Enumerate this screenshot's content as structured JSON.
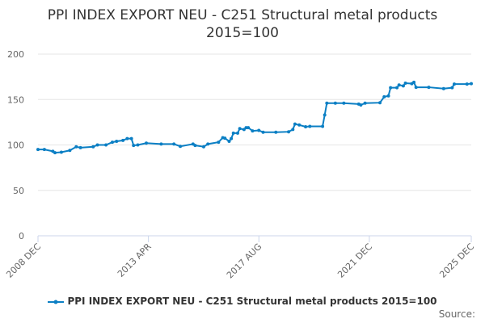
{
  "chart_data": {
    "type": "line",
    "title": "PPI INDEX EXPORT NEU - C251 Structural metal products",
    "subtitle": "2015=100",
    "xlabel": "",
    "ylabel": "",
    "ylim": [
      0,
      200
    ],
    "yticks": [
      0,
      50,
      100,
      150,
      200
    ],
    "xlim": [
      "2008-12",
      "2025-12"
    ],
    "xticks": [
      {
        "date": "2008-12",
        "label": "2008 DEC"
      },
      {
        "date": "2013-04",
        "label": "2013 APR"
      },
      {
        "date": "2017-08",
        "label": "2017 AUG"
      },
      {
        "date": "2021-12",
        "label": "2021 DEC"
      },
      {
        "date": "2025-12",
        "label": "2025 DEC"
      }
    ],
    "grid": true,
    "legend_position": "bottom",
    "color": "#0b7fc4",
    "series": [
      {
        "name": "PPI INDEX EXPORT NEU - C251 Structural metal products 2015=100",
        "points": [
          [
            "2008-12",
            95
          ],
          [
            "2009-03",
            95
          ],
          [
            "2009-07",
            93
          ],
          [
            "2009-08",
            91.5
          ],
          [
            "2009-11",
            92
          ],
          [
            "2010-03",
            94
          ],
          [
            "2010-06",
            98
          ],
          [
            "2010-08",
            97
          ],
          [
            "2011-02",
            98
          ],
          [
            "2011-04",
            100
          ],
          [
            "2011-08",
            100
          ],
          [
            "2011-11",
            103
          ],
          [
            "2012-01",
            104
          ],
          [
            "2012-04",
            105
          ],
          [
            "2012-06",
            107
          ],
          [
            "2012-08",
            107
          ],
          [
            "2012-09",
            99.5
          ],
          [
            "2012-11",
            100
          ],
          [
            "2013-03",
            102
          ],
          [
            "2013-10",
            101
          ],
          [
            "2014-04",
            101
          ],
          [
            "2014-07",
            98.5
          ],
          [
            "2015-01",
            101
          ],
          [
            "2015-02",
            99.5
          ],
          [
            "2015-06",
            98
          ],
          [
            "2015-08",
            101
          ],
          [
            "2016-01",
            103
          ],
          [
            "2016-03",
            108
          ],
          [
            "2016-04",
            107.5
          ],
          [
            "2016-06",
            104
          ],
          [
            "2016-07",
            107
          ],
          [
            "2016-08",
            113
          ],
          [
            "2016-10",
            113
          ],
          [
            "2016-11",
            118
          ],
          [
            "2017-01",
            117
          ],
          [
            "2017-02",
            119
          ],
          [
            "2017-03",
            119
          ],
          [
            "2017-05",
            115.5
          ],
          [
            "2017-08",
            116
          ],
          [
            "2017-10",
            114
          ],
          [
            "2018-04",
            114
          ],
          [
            "2018-10",
            114.5
          ],
          [
            "2018-12",
            117
          ],
          [
            "2019-01",
            123
          ],
          [
            "2019-03",
            122
          ],
          [
            "2019-06",
            120
          ],
          [
            "2019-08",
            120.5
          ],
          [
            "2020-02",
            120.5
          ],
          [
            "2020-03",
            133
          ],
          [
            "2020-04",
            146
          ],
          [
            "2020-08",
            146
          ],
          [
            "2020-12",
            146
          ],
          [
            "2021-07",
            145
          ],
          [
            "2021-08",
            144
          ],
          [
            "2021-10",
            146
          ],
          [
            "2022-05",
            146.5
          ],
          [
            "2022-07",
            153
          ],
          [
            "2022-09",
            154
          ],
          [
            "2022-10",
            163
          ],
          [
            "2023-01",
            163
          ],
          [
            "2023-02",
            166
          ],
          [
            "2023-04",
            165
          ],
          [
            "2023-05",
            168
          ],
          [
            "2023-08",
            167.5
          ],
          [
            "2023-09",
            169
          ],
          [
            "2023-10",
            163.5
          ],
          [
            "2024-04",
            163.5
          ],
          [
            "2024-11",
            162
          ],
          [
            "2025-03",
            163
          ],
          [
            "2025-04",
            167
          ],
          [
            "2025-10",
            167
          ],
          [
            "2025-12",
            167.5
          ]
        ]
      }
    ],
    "source_label": "Source:"
  }
}
